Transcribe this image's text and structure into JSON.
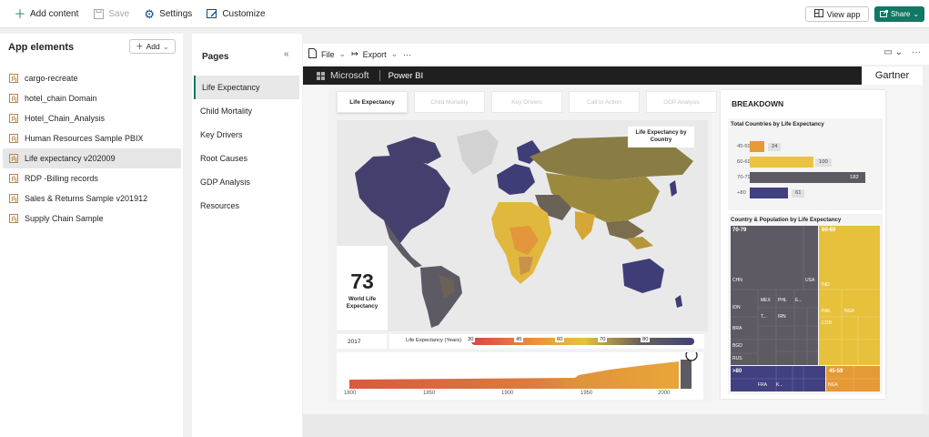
{
  "toolbar": {
    "add_content": "Add content",
    "save": "Save",
    "settings": "Settings",
    "customize": "Customize",
    "view_app": "View app",
    "share": "Share"
  },
  "app_elements": {
    "title": "App elements",
    "add": "Add",
    "items": [
      "cargo-recreate",
      "hotel_chain Domain",
      "Hotel_Chain_Analysis",
      "Human Resources Sample PBIX",
      "Life expectancy v202009",
      "RDP -Billing records",
      "Sales & Returns Sample v201912",
      "Supply Chain Sample"
    ],
    "selected_index": 4
  },
  "pages": {
    "title": "Pages",
    "items": [
      "Life Expectancy",
      "Child Mortality",
      "Key Drivers",
      "Root Causes",
      "GDP Analysis",
      "Resources"
    ],
    "selected_index": 0
  },
  "report_toolbar": {
    "file": "File",
    "export": "Export"
  },
  "pbi": {
    "brand": "Microsoft",
    "product": "Power BI",
    "partner": "Gartner"
  },
  "report": {
    "tabs": [
      "Life Expectancy",
      "Child Mortality",
      "Key Drivers",
      "Call to Action",
      "GDP Analysis"
    ],
    "map_title": "Life Expectancy by Country",
    "kpi": {
      "value": "73",
      "label": "World Life Expectancy"
    },
    "year": "2017",
    "legend": {
      "label": "Life Expectancy (Years)",
      "stops": [
        "30",
        "45",
        "60",
        "70",
        "80"
      ],
      "colors": [
        "#d64545",
        "#e8893c",
        "#e6c33d",
        "#6b6257",
        "#41407a"
      ]
    },
    "timeline": {
      "ticks": [
        "1800",
        "1850",
        "1900",
        "1950",
        "2000"
      ]
    }
  },
  "breakdown": {
    "title": "BREAKDOWN",
    "bar_title": "Total Countries by Life Expectancy",
    "bars": [
      {
        "label": "45-59",
        "value": 24,
        "color": "#e59a35"
      },
      {
        "label": "60-69",
        "value": 100,
        "color": "#ecc33f"
      },
      {
        "label": "70-79",
        "value": 182,
        "color": "#5d5a63"
      },
      {
        "label": "+80",
        "value": 61,
        "color": "#414080"
      }
    ],
    "treemap_title": "Country & Population by Life Expectancy",
    "treemap": {
      "g7079": "70-79",
      "g6069": "60-69",
      "g80": ">80",
      "g4559": "45-59",
      "countries": [
        "CHN",
        "USA",
        "IDN",
        "MEX",
        "PHL",
        "E...",
        "T...",
        "IRN",
        "BRA",
        "BGD",
        "RUS",
        "IND",
        "PAK",
        "NGA",
        "COD",
        "FRA",
        "K...",
        "NGA"
      ]
    }
  }
}
